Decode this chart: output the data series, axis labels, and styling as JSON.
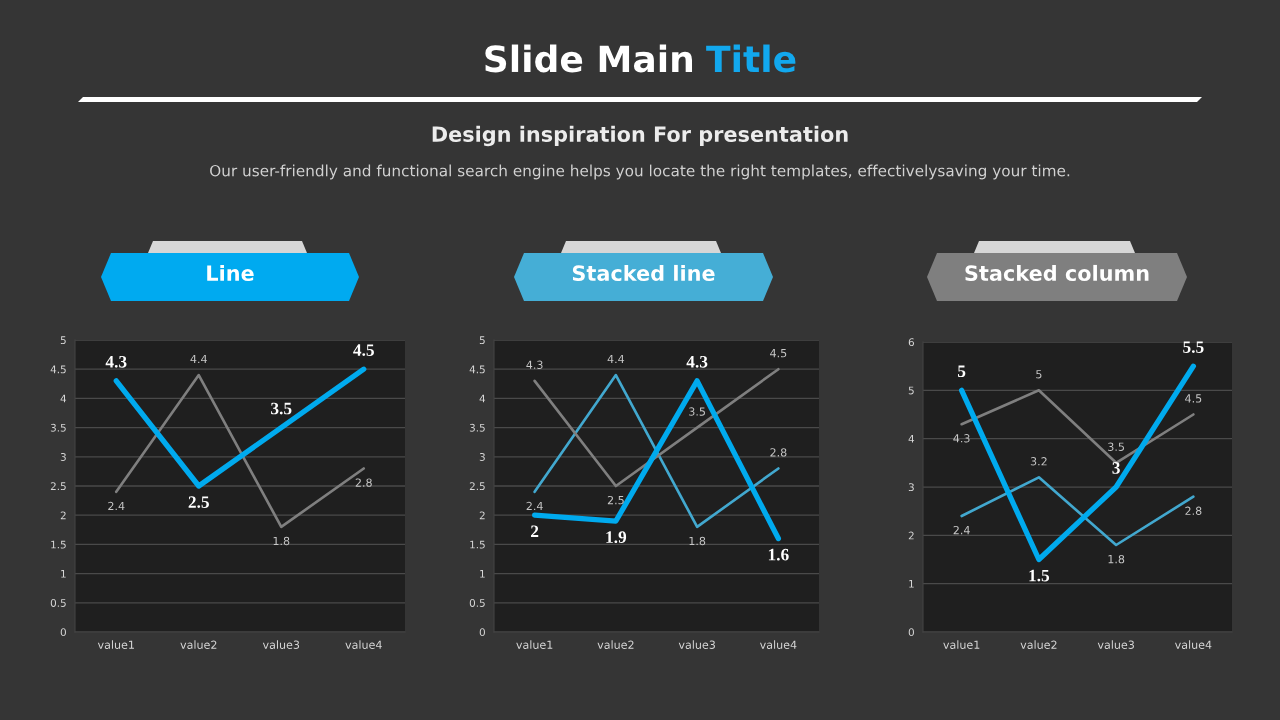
{
  "chart_data": [
    {
      "type": "other",
      "title": "Slide Main Title",
      "subtitle": "Design inspiration For presentation",
      "annotations": [
        "Our user-friendly and functional search engine helps you locate the right templates, effectivelysaving your time."
      ]
    },
    {
      "type": "line",
      "title": "Line",
      "categories": [
        "value1",
        "value2",
        "value3",
        "value4"
      ],
      "series": [
        {
          "color": "#00aaee",
          "values": [
            4.3,
            2.5,
            3.5,
            4.5
          ]
        },
        {
          "color": "#7f7f7f",
          "values": [
            2.4,
            4.4,
            1.8,
            2.8
          ]
        }
      ],
      "ylim": [
        0,
        5
      ],
      "yticks": [
        0,
        0.5,
        1,
        1.5,
        2,
        2.5,
        3,
        3.5,
        4,
        4.5,
        5
      ],
      "grid": "y",
      "data_labels": true
    },
    {
      "type": "line",
      "title": "Stacked line",
      "categories": [
        "value1",
        "value2",
        "value3",
        "value4"
      ],
      "series": [
        {
          "color": "#00aaee",
          "values": [
            2,
            1.9,
            4.3,
            1.6
          ]
        },
        {
          "color": "#42a8cf",
          "values": [
            2.4,
            4.4,
            1.8,
            2.8
          ]
        },
        {
          "color": "#7f7f7f",
          "values": [
            4.3,
            2.5,
            3.5,
            4.5
          ]
        }
      ],
      "ylim": [
        0,
        5
      ],
      "yticks": [
        0,
        0.5,
        1,
        1.5,
        2,
        2.5,
        3,
        3.5,
        4,
        4.5,
        5
      ],
      "grid": "y",
      "data_labels": true
    },
    {
      "type": "line",
      "title": "Stacked column",
      "categories": [
        "value1",
        "value2",
        "value3",
        "value4"
      ],
      "series": [
        {
          "color": "#00aaee",
          "values": [
            5,
            1.5,
            3,
            5.5
          ]
        },
        {
          "color": "#42a8cf",
          "values": [
            2.4,
            3.2,
            1.8,
            2.8
          ]
        },
        {
          "color": "#7f7f7f",
          "values": [
            4.3,
            5,
            3.5,
            4.5
          ]
        }
      ],
      "ylim": [
        0,
        6
      ],
      "yticks": [
        0,
        1,
        2,
        3,
        4,
        5,
        6
      ],
      "grid": "y",
      "data_labels": true
    }
  ]
}
